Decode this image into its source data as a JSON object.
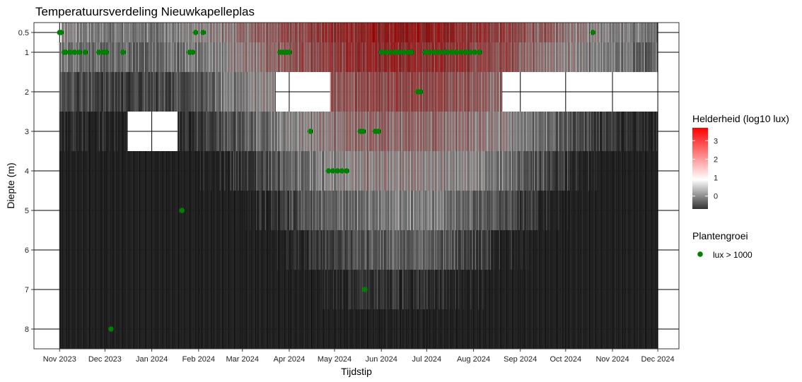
{
  "chart_data": {
    "type": "heatmap",
    "title": "Temperatuursverdeling Nieuwkapelleplas",
    "xlabel": "Tijdstip",
    "ylabel": "Diepte (m)",
    "x_range": [
      "2023-10-15",
      "2024-12-15"
    ],
    "y_range": [
      0.25,
      8.5
    ],
    "y_reversed": true,
    "x_ticks": [
      {
        "date": "2023-11-01",
        "label": "Nov 2023"
      },
      {
        "date": "2023-12-01",
        "label": "Dec 2023"
      },
      {
        "date": "2024-01-01",
        "label": "Jan 2024"
      },
      {
        "date": "2024-02-01",
        "label": "Feb 2024"
      },
      {
        "date": "2024-03-01",
        "label": "Mar 2024"
      },
      {
        "date": "2024-04-01",
        "label": "Apr 2024"
      },
      {
        "date": "2024-05-01",
        "label": "May 2024"
      },
      {
        "date": "2024-06-01",
        "label": "Jun 2024"
      },
      {
        "date": "2024-07-01",
        "label": "Jul 2024"
      },
      {
        "date": "2024-08-01",
        "label": "Aug 2024"
      },
      {
        "date": "2024-09-01",
        "label": "Sep 2024"
      },
      {
        "date": "2024-10-01",
        "label": "Oct 2024"
      },
      {
        "date": "2024-11-01",
        "label": "Nov 2024"
      },
      {
        "date": "2024-12-01",
        "label": "Dec 2024"
      }
    ],
    "y_ticks": [
      {
        "value": 0.5,
        "label": "0.5"
      },
      {
        "value": 1,
        "label": "1"
      },
      {
        "value": 2,
        "label": "2"
      },
      {
        "value": 3,
        "label": "3"
      },
      {
        "value": 4,
        "label": "4"
      },
      {
        "value": 5,
        "label": "5"
      },
      {
        "value": 6,
        "label": "6"
      },
      {
        "value": 7,
        "label": "7"
      },
      {
        "value": 8,
        "label": "8"
      }
    ],
    "depth_rows": [
      {
        "depth": 0.5,
        "range": [
          0.25,
          0.75
        ]
      },
      {
        "depth": 1,
        "range": [
          0.75,
          1.5
        ]
      },
      {
        "depth": 2,
        "range": [
          1.5,
          2.5
        ]
      },
      {
        "depth": 3,
        "range": [
          2.5,
          3.5
        ]
      },
      {
        "depth": 4,
        "range": [
          3.5,
          4.5
        ]
      },
      {
        "depth": 5,
        "range": [
          4.5,
          5.5
        ]
      },
      {
        "depth": 6,
        "range": [
          5.5,
          6.5
        ]
      },
      {
        "depth": 7,
        "range": [
          6.5,
          7.5
        ]
      },
      {
        "depth": 8,
        "range": [
          7.5,
          8.5
        ]
      }
    ],
    "data_period": [
      "2023-11-01",
      "2024-11-30"
    ],
    "missing_blocks": [
      {
        "depth": 2,
        "from": "2024-03-23",
        "to": "2024-04-27"
      },
      {
        "depth": 2,
        "from": "2024-08-20",
        "to": "2024-11-30"
      },
      {
        "depth": 3,
        "from": "2023-12-16",
        "to": "2024-01-17"
      },
      {
        "depth": 0.5,
        "from": "2023-11-01",
        "to": "2023-11-01"
      }
    ],
    "color_scale": {
      "title": "Helderheid (log10 lux)",
      "low_color": "#333333",
      "mid_color": "#ffffff",
      "high_color": "#ff0000",
      "min": -0.7,
      "mid": 1,
      "max": 3.7,
      "ticks": [
        {
          "value": 0,
          "label": "0"
        },
        {
          "value": 1,
          "label": "1"
        },
        {
          "value": 2,
          "label": "2"
        },
        {
          "value": 3,
          "label": "3"
        }
      ]
    },
    "points_legend": {
      "title": "Plantengroei",
      "label": "lux > 1000",
      "color": "#008000"
    },
    "plant_growth_points": [
      {
        "date": "2023-11-01",
        "depth": 0.5
      },
      {
        "date": "2023-11-02",
        "depth": 0.5
      },
      {
        "date": "2024-01-30",
        "depth": 0.5
      },
      {
        "date": "2024-02-04",
        "depth": 0.5
      },
      {
        "date": "2024-10-19",
        "depth": 0.5
      },
      {
        "date": "2023-11-04",
        "depth": 1
      },
      {
        "date": "2023-11-05",
        "depth": 1
      },
      {
        "date": "2023-11-08",
        "depth": 1
      },
      {
        "date": "2023-11-11",
        "depth": 1
      },
      {
        "date": "2023-11-14",
        "depth": 1
      },
      {
        "date": "2023-11-18",
        "depth": 1
      },
      {
        "date": "2023-11-27",
        "depth": 1
      },
      {
        "date": "2023-11-30",
        "depth": 1
      },
      {
        "date": "2023-12-02",
        "depth": 1
      },
      {
        "date": "2023-12-13",
        "depth": 1
      },
      {
        "date": "2024-01-26",
        "depth": 1
      },
      {
        "date": "2024-01-28",
        "depth": 1
      },
      {
        "date": "2024-03-26",
        "depth": 1
      },
      {
        "date": "2024-03-28",
        "depth": 1
      },
      {
        "date": "2024-03-30",
        "depth": 1
      },
      {
        "date": "2024-04-01",
        "depth": 1
      },
      {
        "date": "2024-06-01",
        "depth": 1
      },
      {
        "date": "2024-06-04",
        "depth": 1
      },
      {
        "date": "2024-06-07",
        "depth": 1
      },
      {
        "date": "2024-06-10",
        "depth": 1
      },
      {
        "date": "2024-06-13",
        "depth": 1
      },
      {
        "date": "2024-06-16",
        "depth": 1
      },
      {
        "date": "2024-06-19",
        "depth": 1
      },
      {
        "date": "2024-06-21",
        "depth": 1
      },
      {
        "date": "2024-06-30",
        "depth": 1
      },
      {
        "date": "2024-07-03",
        "depth": 1
      },
      {
        "date": "2024-07-06",
        "depth": 1
      },
      {
        "date": "2024-07-09",
        "depth": 1
      },
      {
        "date": "2024-07-12",
        "depth": 1
      },
      {
        "date": "2024-07-15",
        "depth": 1
      },
      {
        "date": "2024-07-18",
        "depth": 1
      },
      {
        "date": "2024-07-21",
        "depth": 1
      },
      {
        "date": "2024-07-24",
        "depth": 1
      },
      {
        "date": "2024-07-27",
        "depth": 1
      },
      {
        "date": "2024-07-30",
        "depth": 1
      },
      {
        "date": "2024-08-02",
        "depth": 1
      },
      {
        "date": "2024-08-05",
        "depth": 1
      },
      {
        "date": "2024-06-25",
        "depth": 2
      },
      {
        "date": "2024-06-27",
        "depth": 2
      },
      {
        "date": "2024-04-15",
        "depth": 3
      },
      {
        "date": "2024-05-18",
        "depth": 3
      },
      {
        "date": "2024-05-20",
        "depth": 3
      },
      {
        "date": "2024-05-28",
        "depth": 3
      },
      {
        "date": "2024-05-30",
        "depth": 3
      },
      {
        "date": "2024-04-27",
        "depth": 4
      },
      {
        "date": "2024-04-30",
        "depth": 4
      },
      {
        "date": "2024-05-03",
        "depth": 4
      },
      {
        "date": "2024-05-06",
        "depth": 4
      },
      {
        "date": "2024-05-09",
        "depth": 4
      },
      {
        "date": "2024-01-21",
        "depth": 5
      },
      {
        "date": "2024-05-21",
        "depth": 7
      },
      {
        "date": "2023-12-05",
        "depth": 8
      }
    ]
  }
}
